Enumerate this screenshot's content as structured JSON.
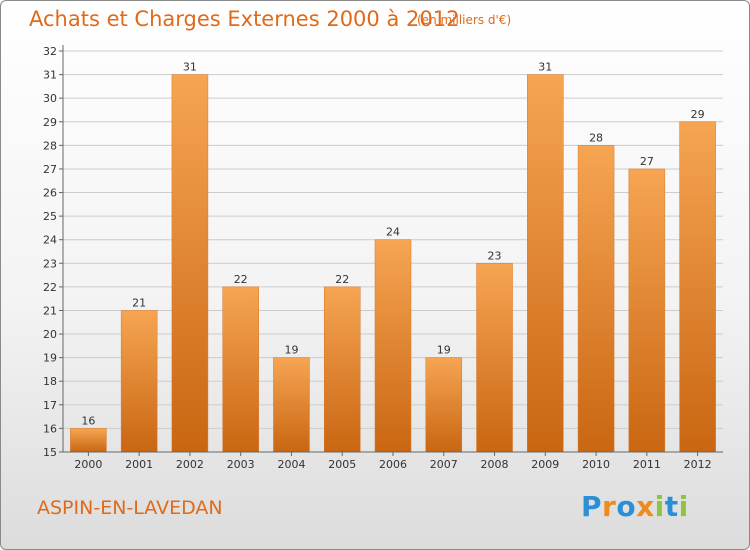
{
  "header": {
    "title": "Achats et Charges Externes 2000 à 2012",
    "unit_note": "(en milliers d'€)"
  },
  "footer": {
    "location": "ASPIN-EN-LAVEDAN",
    "brand": "Proxiti",
    "brand_letters": [
      {
        "char": "P",
        "color": "#2a8fd6"
      },
      {
        "char": "r",
        "color": "#f08a1c"
      },
      {
        "char": "o",
        "color": "#2a8fd6"
      },
      {
        "char": "x",
        "color": "#f08a1c"
      },
      {
        "char": "i",
        "color": "#8cc63e"
      },
      {
        "char": "t",
        "color": "#2a8fd6"
      },
      {
        "char": "i",
        "color": "#8cc63e"
      }
    ]
  },
  "colors": {
    "accent": "#e06a1a",
    "bar_top": "#f6a553",
    "bar_bottom": "#c96612",
    "grid": "#cccccc"
  },
  "chart_data": {
    "type": "bar",
    "title": "Achats et Charges Externes 2000 à 2012",
    "subtitle": "(en milliers d'€)",
    "categories": [
      "2000",
      "2001",
      "2002",
      "2003",
      "2004",
      "2005",
      "2006",
      "2007",
      "2008",
      "2009",
      "2010",
      "2011",
      "2012"
    ],
    "values": [
      16,
      21,
      31,
      22,
      19,
      22,
      24,
      19,
      23,
      31,
      28,
      27,
      29
    ],
    "ylim": [
      15,
      32
    ],
    "yticks": [
      15,
      16,
      17,
      18,
      19,
      20,
      21,
      22,
      23,
      24,
      25,
      26,
      27,
      28,
      29,
      30,
      31,
      32
    ],
    "grid": true,
    "data_labels": true
  }
}
